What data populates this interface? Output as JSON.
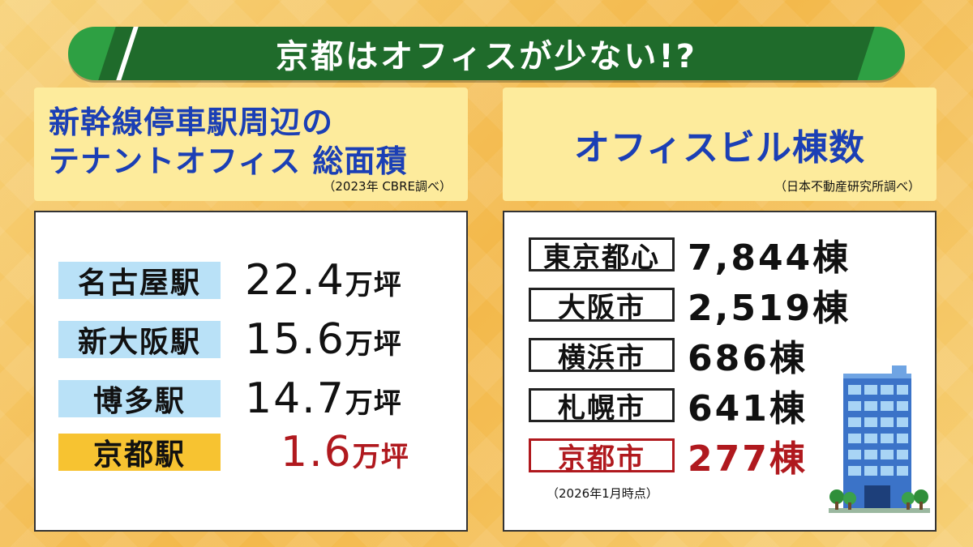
{
  "title": "京都はオフィスが少ない!?",
  "left": {
    "heading_line1": "新幹線停車駅周辺の",
    "heading_line2": "テナントオフィス 総面積",
    "source": "（2023年 CBRE調べ）",
    "rows": [
      {
        "name": "名古屋駅",
        "value": "22.4",
        "unit": "万坪"
      },
      {
        "name": "新大阪駅",
        "value": "15.6",
        "unit": "万坪"
      },
      {
        "name": "博多駅",
        "value": "14.7",
        "unit": "万坪"
      },
      {
        "name": "京都駅",
        "value": "1.6",
        "unit": "万坪"
      }
    ]
  },
  "right": {
    "heading": "オフィスビル棟数",
    "source": "（日本不動産研究所調べ）",
    "rows": [
      {
        "name": "東京都心",
        "value": "7,844棟"
      },
      {
        "name": "大阪市",
        "value": "2,519棟"
      },
      {
        "name": "横浜市",
        "value": "686棟"
      },
      {
        "name": "札幌市",
        "value": "641棟"
      },
      {
        "name": "京都市",
        "value": "277棟"
      }
    ],
    "note": "（2026年1月時点）"
  },
  "colors": {
    "banner_green": "#1f6b2b",
    "heading_blue": "#1b3fb5",
    "highlight_red": "#b0191e",
    "station_blue": "#b9e1f7",
    "kyoto_yellow": "#f7c331"
  },
  "icons": {
    "building": "office-building-illustration",
    "trees": "tree-icon"
  }
}
